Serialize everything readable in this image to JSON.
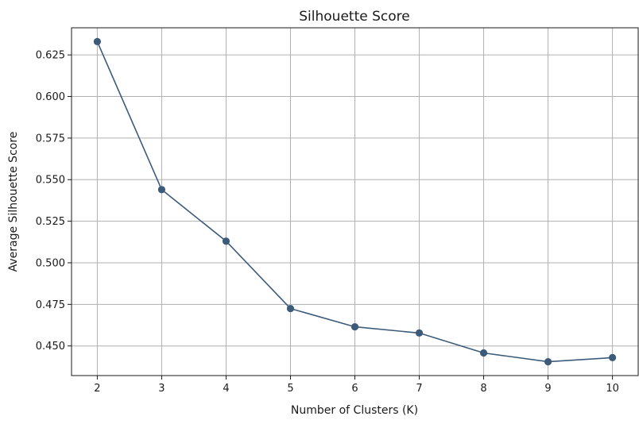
{
  "chart_data": {
    "type": "line",
    "title": "Silhouette Score",
    "xlabel": "Number of Clusters (K)",
    "ylabel": "Average Silhouette Score",
    "x": [
      2,
      3,
      4,
      5,
      6,
      7,
      8,
      9,
      10
    ],
    "series": [
      {
        "values": [
          0.633,
          0.544,
          0.513,
          0.4725,
          0.4615,
          0.4578,
          0.4458,
          0.4405,
          0.443
        ]
      }
    ],
    "xticks": [
      2,
      3,
      4,
      5,
      6,
      7,
      8,
      9,
      10
    ],
    "yticks": [
      0.45,
      0.475,
      0.5,
      0.525,
      0.55,
      0.575,
      0.6,
      0.625
    ],
    "ytick_labels": [
      "0.450",
      "0.475",
      "0.500",
      "0.525",
      "0.550",
      "0.575",
      "0.600",
      "0.625"
    ],
    "xlim": [
      1.6,
      10.4
    ],
    "ylim": [
      0.4322,
      0.6413
    ],
    "grid": true,
    "line_color": "#3c5b7a",
    "marker": "circle"
  }
}
